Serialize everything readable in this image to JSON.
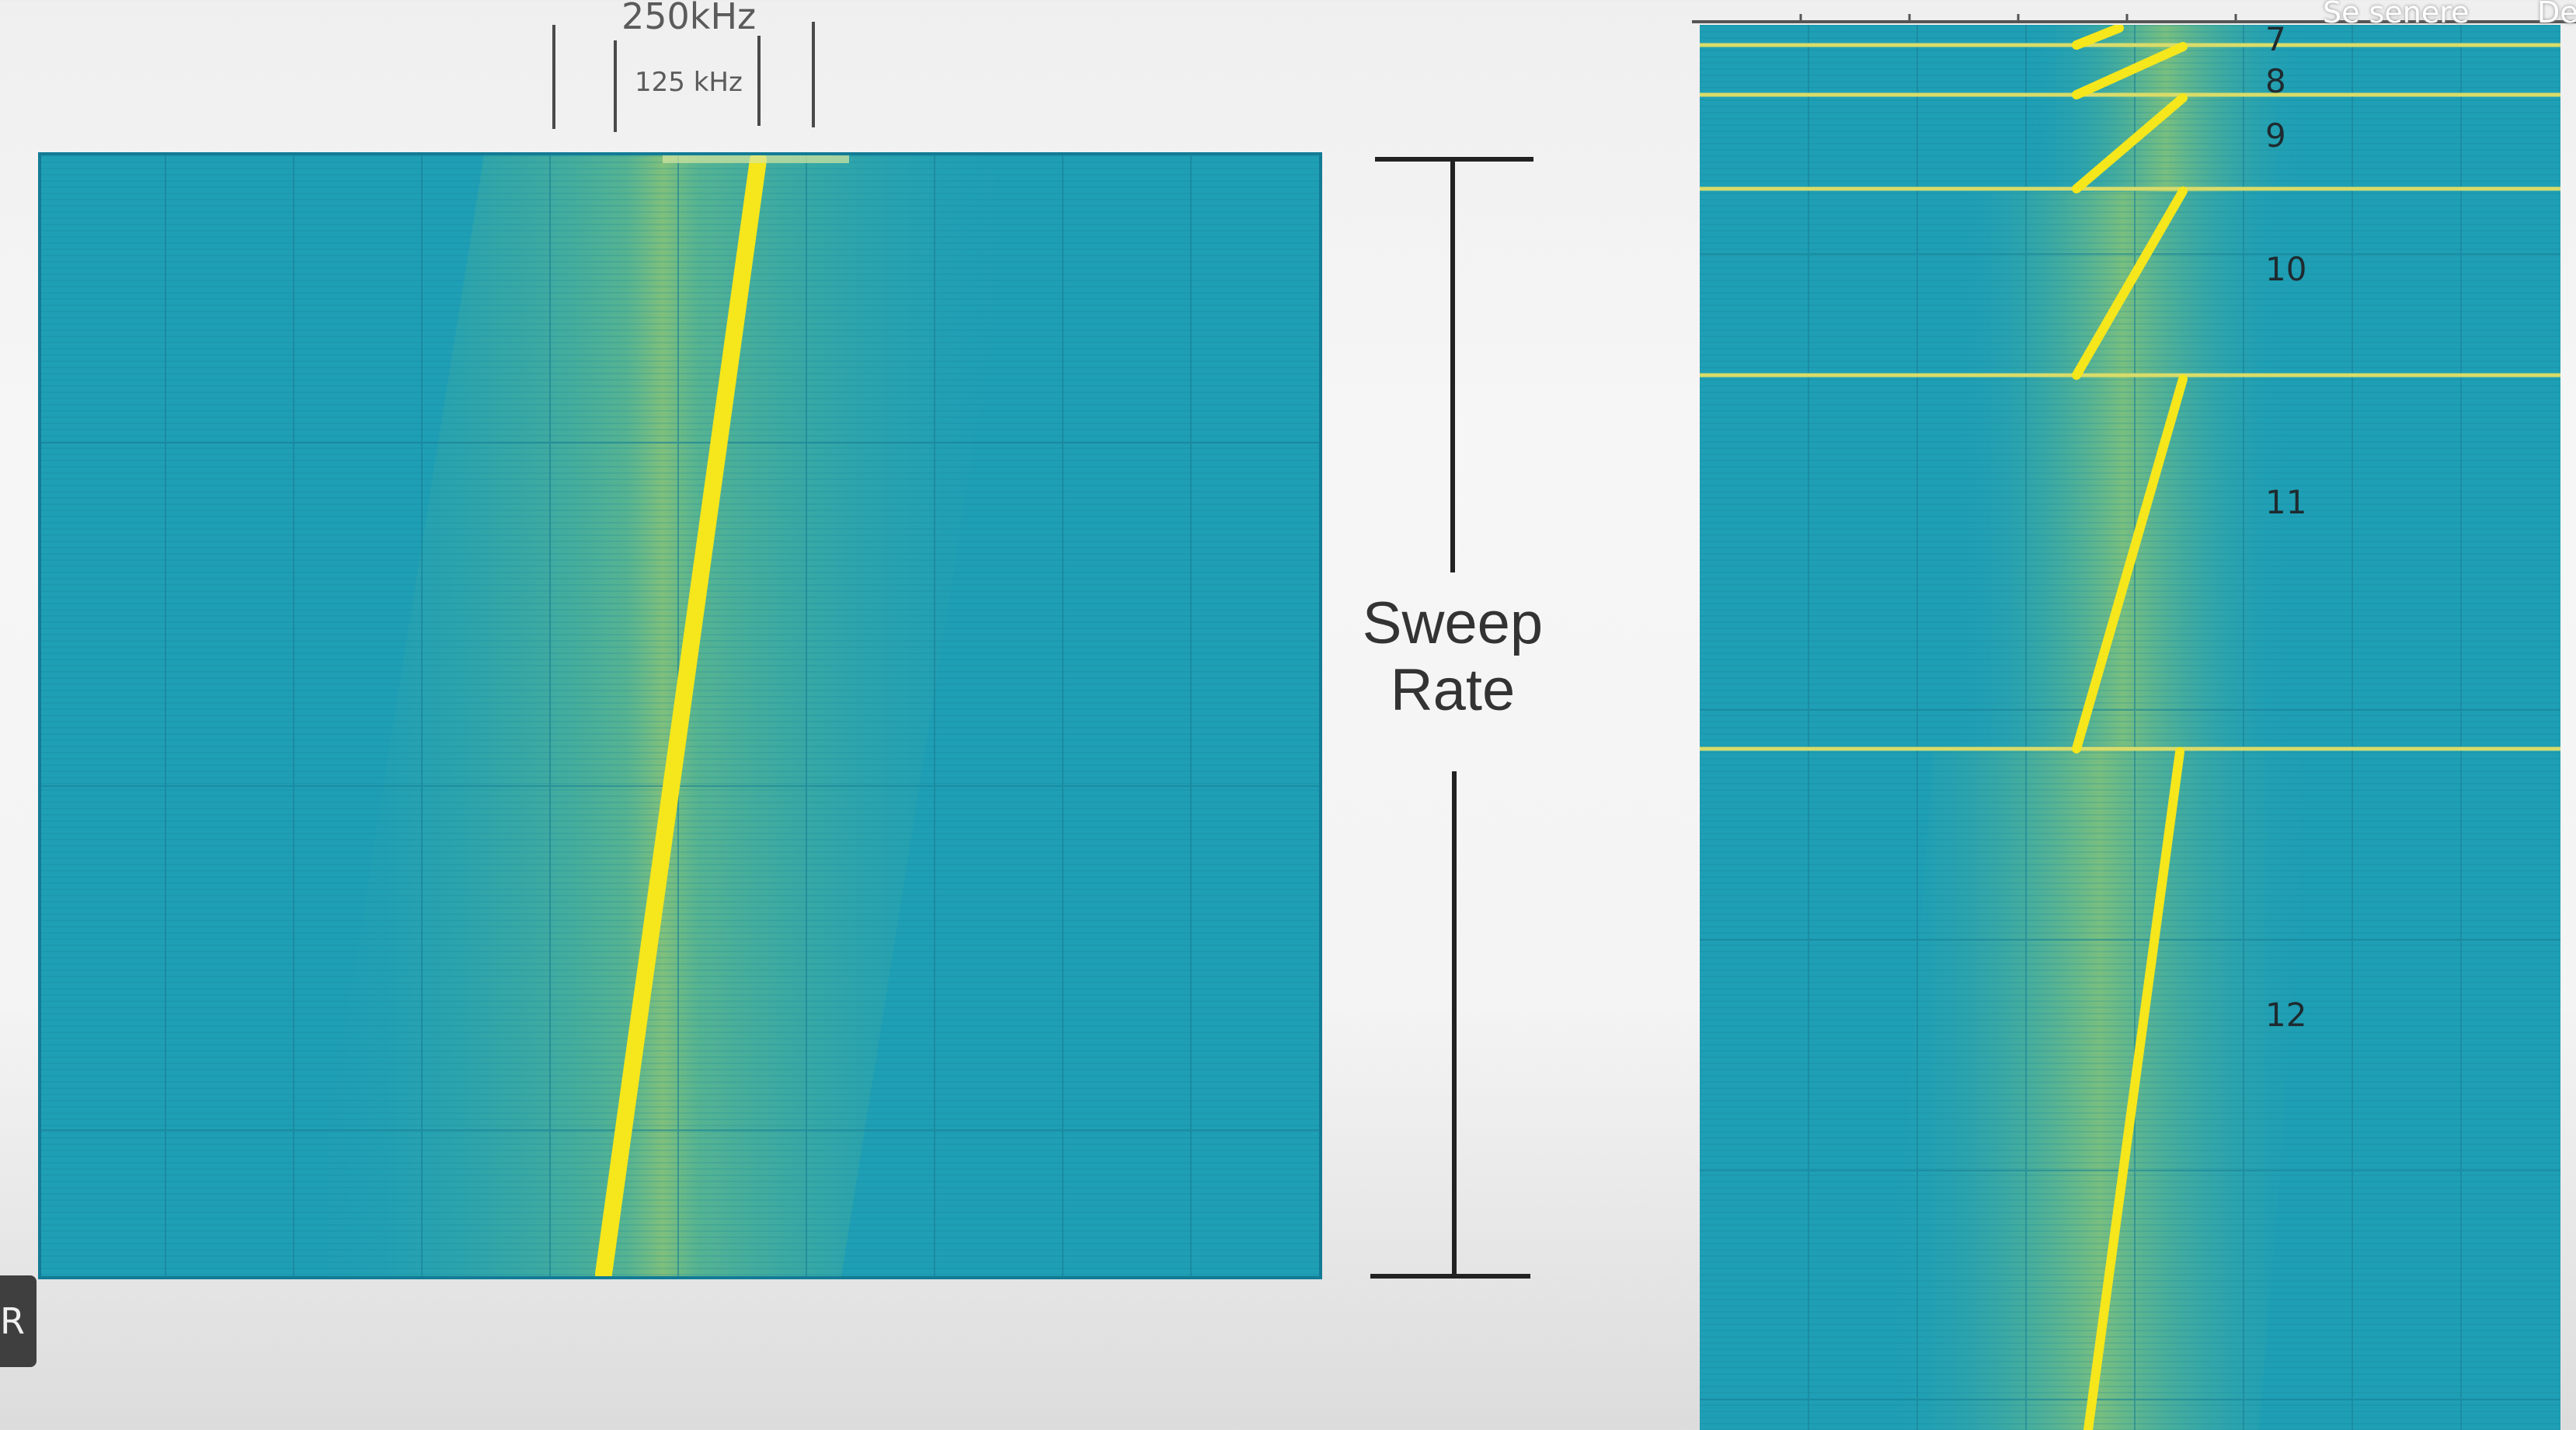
{
  "bandwidth": {
    "outer_label": "250kHz",
    "inner_label": "125 kHz"
  },
  "sweep": {
    "line1": "Sweep",
    "line2": "Rate"
  },
  "spreading_factors": [
    "7",
    "8",
    "9",
    "10",
    "11",
    "12"
  ],
  "overlay": {
    "top_right_text": "Se senere",
    "top_right_text2": "De",
    "corner_badge": "R"
  },
  "colors": {
    "plot_bg": "#1f9fb5",
    "chirp": "#f3e21c",
    "glow": "#b9d35a",
    "divider": "#d9dc6a"
  },
  "icons": {
    "corner": "R-badge"
  }
}
